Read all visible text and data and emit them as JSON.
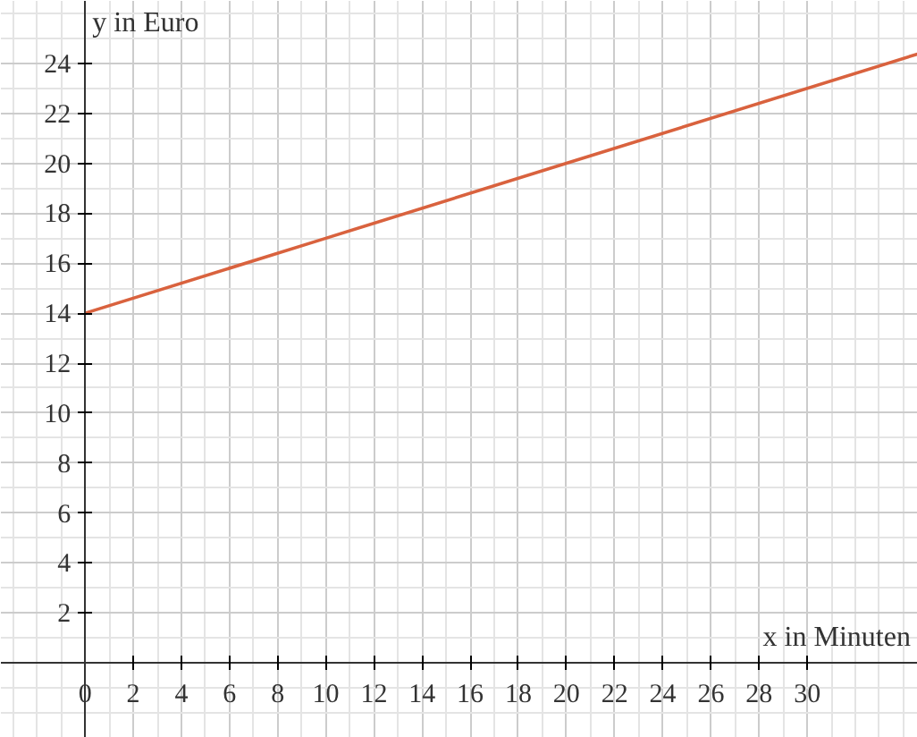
{
  "chart_data": {
    "type": "line",
    "xlabel": "x in Minuten",
    "ylabel": "y in Euro",
    "x": [
      0,
      10,
      20,
      34.6
    ],
    "series": [
      {
        "color": "#d9623e",
        "values": [
          14,
          17,
          20,
          24.38
        ]
      }
    ],
    "xlim": [
      -3.5,
      34.6
    ],
    "ylim": [
      -3,
      26.5
    ],
    "xticks": [
      0,
      2,
      4,
      6,
      8,
      10,
      12,
      14,
      16,
      18,
      20,
      22,
      24,
      26,
      28,
      30
    ],
    "yticks": [
      2,
      4,
      6,
      8,
      10,
      12,
      14,
      16,
      18,
      20,
      22,
      24
    ],
    "grid": true
  }
}
